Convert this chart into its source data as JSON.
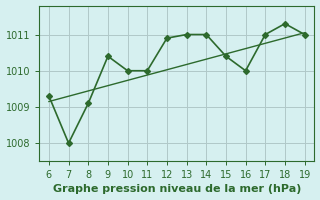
{
  "x_main": [
    6,
    7,
    8,
    9,
    10,
    11,
    12,
    13,
    14,
    15,
    16,
    17,
    18,
    19
  ],
  "y_main": [
    1009.3,
    1008.0,
    1009.1,
    1010.4,
    1010.0,
    1010.0,
    1010.9,
    1011.0,
    1011.0,
    1010.4,
    1010.0,
    1011.0,
    1011.3,
    1011.0
  ],
  "trend_x": [
    6,
    19
  ],
  "trend_y": [
    1009.15,
    1011.05
  ],
  "line_color": "#2d6a2d",
  "bg_color": "#d6f0f0",
  "grid_color": "#b0c8c8",
  "xlabel": "Graphe pression niveau de la mer (hPa)",
  "xlim": [
    5.5,
    19.5
  ],
  "ylim": [
    1007.5,
    1011.8
  ],
  "yticks": [
    1008,
    1009,
    1010,
    1011
  ],
  "xticks": [
    6,
    7,
    8,
    9,
    10,
    11,
    12,
    13,
    14,
    15,
    16,
    17,
    18,
    19
  ],
  "tick_fontsize": 7,
  "xlabel_fontsize": 8
}
